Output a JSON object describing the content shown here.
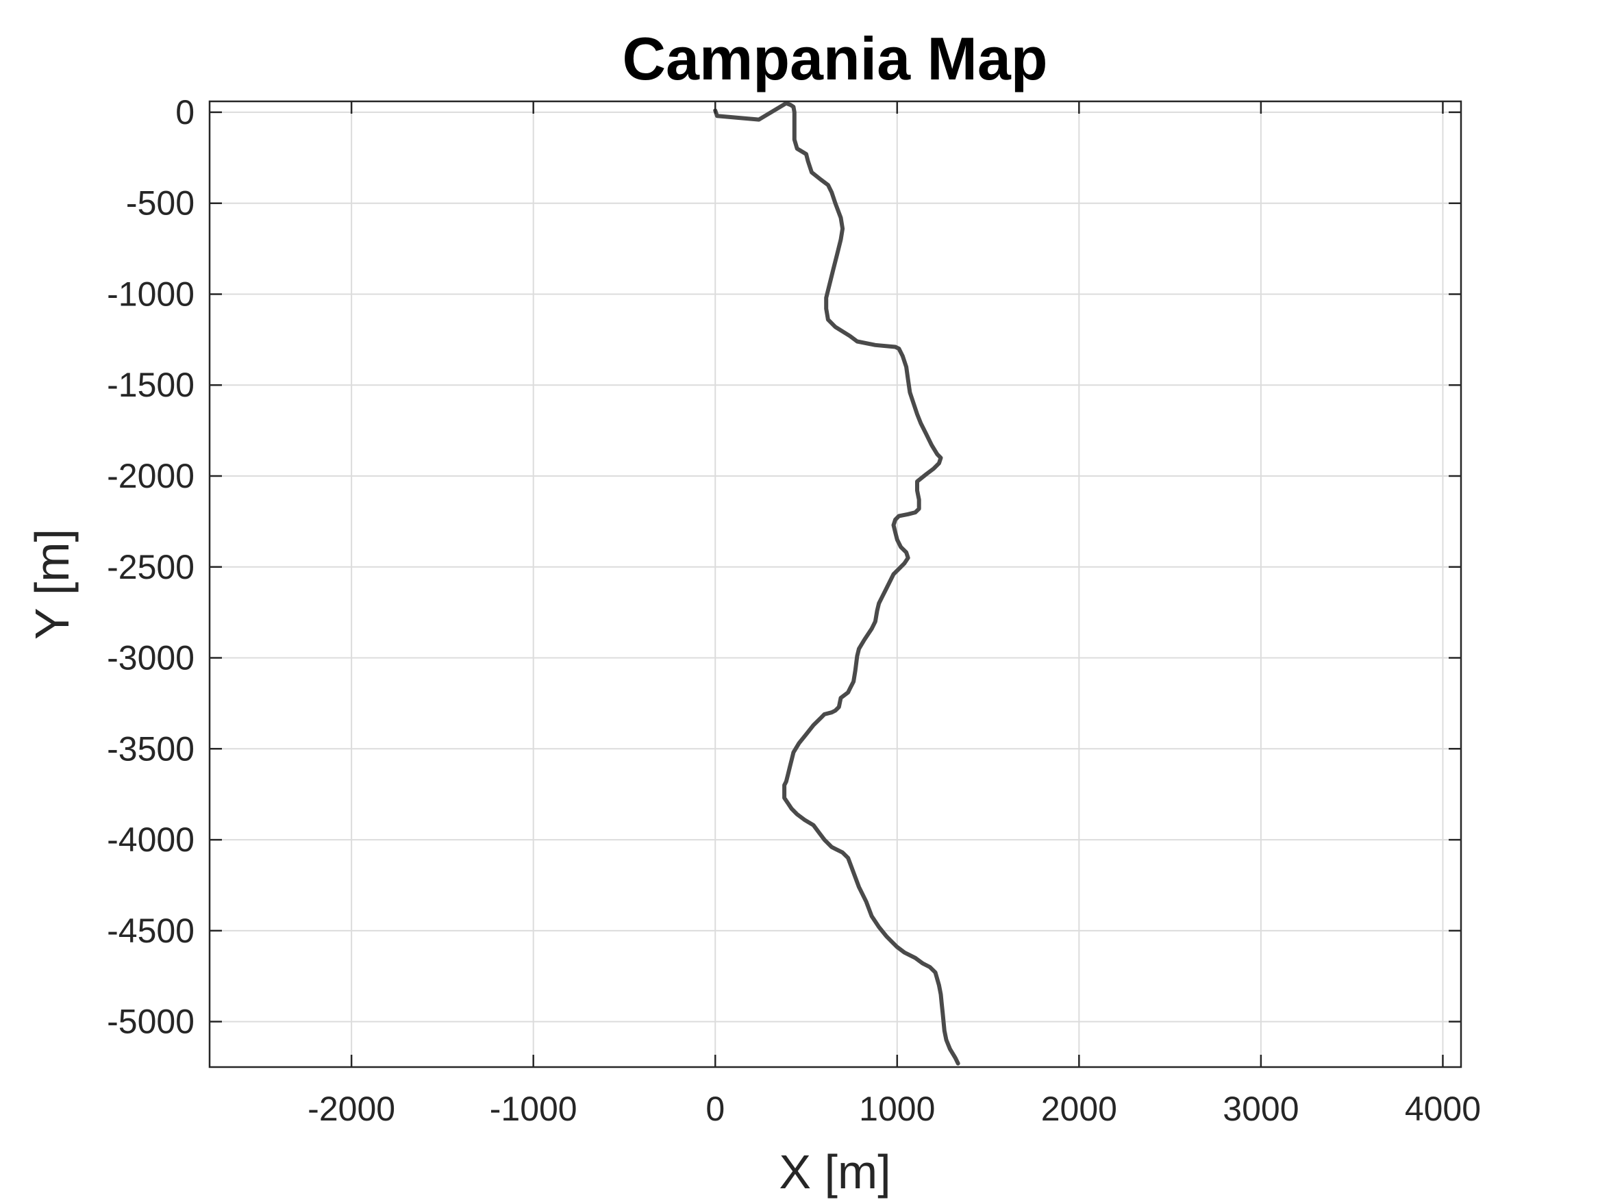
{
  "chart_data": {
    "type": "line",
    "title": "Campania Map",
    "xlabel": "X [m]",
    "ylabel": "Y [m]",
    "xlim": [
      -2780,
      4100
    ],
    "ylim": [
      -5250,
      60
    ],
    "xticks": [
      -2000,
      -1000,
      0,
      1000,
      2000,
      3000,
      4000
    ],
    "xtick_labels": [
      "-2000",
      "-1000",
      "0",
      "1000",
      "2000",
      "3000",
      "4000"
    ],
    "yticks": [
      0,
      -500,
      -1000,
      -1500,
      -2000,
      -2500,
      -3000,
      -3500,
      -4000,
      -4500,
      -5000
    ],
    "ytick_labels": [
      "0",
      "-500",
      "-1000",
      "-1500",
      "-2000",
      "-2500",
      "-3000",
      "-3500",
      "-4000",
      "-4500",
      "-5000"
    ],
    "grid": true,
    "line_color": "#4a4a4a",
    "series": [
      {
        "x": [
          0,
          10,
          240,
          390,
          415,
          430,
          435,
          435,
          450,
          500,
          510,
          530,
          580,
          620,
          640,
          660,
          690,
          700,
          690,
          670,
          650,
          630,
          610,
          610,
          620,
          660,
          740,
          780,
          880,
          990,
          1010,
          1030,
          1050,
          1060,
          1070,
          1090,
          1110,
          1130,
          1160,
          1190,
          1220,
          1240,
          1230,
          1200,
          1160,
          1110,
          1110,
          1120,
          1120,
          1100,
          1060,
          1010,
          990,
          980,
          990,
          1000,
          1020,
          1050,
          1060,
          1040,
          1000,
          980,
          960,
          940,
          920,
          900,
          890,
          880,
          860,
          820,
          790,
          780,
          770,
          760,
          740,
          730,
          690,
          680,
          660,
          640,
          600,
          580,
          540,
          500,
          460,
          430,
          420,
          410,
          400,
          390,
          380,
          380,
          400,
          420,
          450,
          490,
          540,
          570,
          600,
          630,
          640,
          660,
          700,
          730,
          760,
          790,
          830,
          860,
          900,
          940,
          970,
          1000,
          1040,
          1100,
          1140,
          1180,
          1210,
          1230,
          1240,
          1245,
          1250,
          1255,
          1260,
          1270,
          1290,
          1320,
          1335
        ],
        "y": [
          10,
          -20,
          -40,
          50,
          40,
          30,
          0,
          -150,
          -200,
          -230,
          -270,
          -330,
          -370,
          -400,
          -440,
          -500,
          -580,
          -640,
          -700,
          -780,
          -860,
          -940,
          -1020,
          -1080,
          -1140,
          -1180,
          -1230,
          -1260,
          -1280,
          -1290,
          -1300,
          -1340,
          -1400,
          -1470,
          -1540,
          -1600,
          -1660,
          -1710,
          -1770,
          -1830,
          -1880,
          -1900,
          -1930,
          -1960,
          -1990,
          -2030,
          -2080,
          -2130,
          -2180,
          -2200,
          -2210,
          -2220,
          -2240,
          -2270,
          -2310,
          -2350,
          -2390,
          -2420,
          -2450,
          -2480,
          -2520,
          -2540,
          -2580,
          -2620,
          -2660,
          -2700,
          -2740,
          -2800,
          -2840,
          -2900,
          -2950,
          -2990,
          -3070,
          -3130,
          -3170,
          -3190,
          -3220,
          -3270,
          -3290,
          -3300,
          -3310,
          -3330,
          -3370,
          -3420,
          -3470,
          -3520,
          -3560,
          -3600,
          -3640,
          -3680,
          -3700,
          -3770,
          -3800,
          -3830,
          -3860,
          -3890,
          -3920,
          -3960,
          -4000,
          -4030,
          -4040,
          -4050,
          -4070,
          -4100,
          -4180,
          -4260,
          -4340,
          -4420,
          -4480,
          -4530,
          -4560,
          -4590,
          -4620,
          -4650,
          -4680,
          -4700,
          -4730,
          -4800,
          -4850,
          -4900,
          -4950,
          -5000,
          -5050,
          -5100,
          -5150,
          -5200,
          -5230
        ]
      }
    ]
  }
}
